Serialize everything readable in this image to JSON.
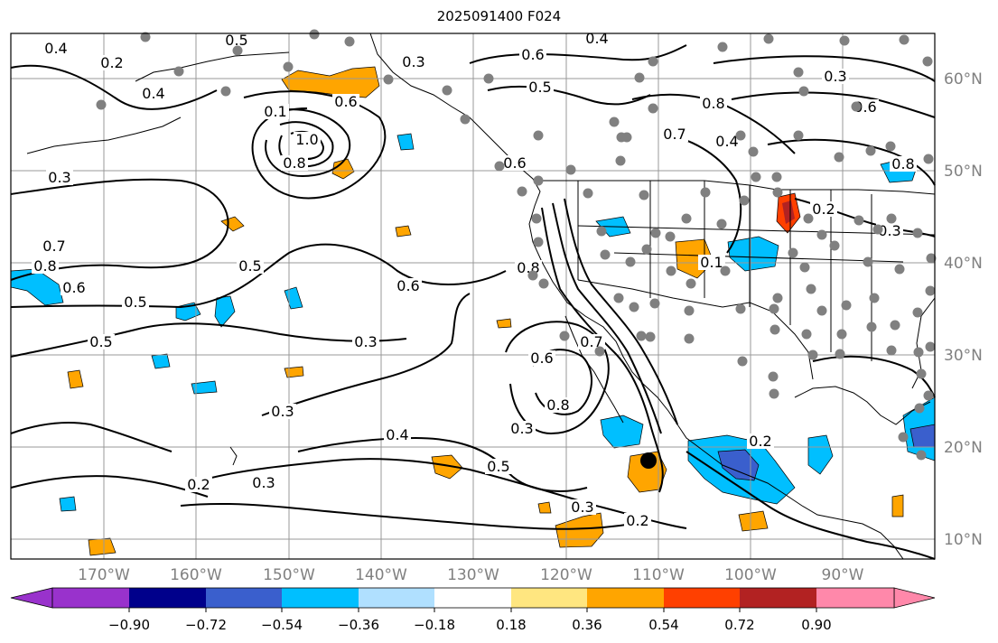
{
  "title": "2025091400 F024",
  "map": {
    "lon_labels": [
      "170°W",
      "160°W",
      "150°W",
      "140°W",
      "130°W",
      "120°W",
      "110°W",
      "100°W",
      "90°W"
    ],
    "lat_labels": [
      "60°N",
      "50°N",
      "40°N",
      "30°N",
      "20°N",
      "10°N"
    ],
    "lon_range": [
      -180,
      -80
    ],
    "lat_range": [
      8,
      65
    ],
    "contour_labels": [
      "0.4",
      "0.5",
      "0.3",
      "0.4",
      "0.2",
      "0.6",
      "0.5",
      "0.4",
      "0.6",
      "0.3",
      "0.6",
      "0.1",
      "1.0",
      "0.8",
      "0.3",
      "0.7",
      "0.8",
      "0.6",
      "0.5",
      "0.5",
      "0.6",
      "0.5",
      "0.3",
      "0.3",
      "0.4",
      "0.5",
      "0.2",
      "0.3",
      "0.3",
      "0.8",
      "0.6",
      "0.7",
      "0.8",
      "0.3",
      "0.2",
      "0.8",
      "0.7",
      "0.4",
      "0.8",
      "0.2",
      "0.2",
      "0.3",
      "0.6",
      "0.1"
    ],
    "colors": {
      "land_outline": "#000000",
      "grid": "#999999",
      "station": "#808080",
      "contour": "#000000"
    }
  },
  "colorbar": {
    "ticks": [
      "−0.90",
      "−0.72",
      "−0.54",
      "−0.36",
      "−0.18",
      "0.18",
      "0.36",
      "0.54",
      "0.72",
      "0.90"
    ],
    "colors": [
      "#9932cc",
      "#00008b",
      "#3a5fcd",
      "#00bfff",
      "#b0e0ff",
      "#ffffff",
      "#ffe680",
      "#ffa500",
      "#ff4000",
      "#b22222",
      "#ff88aa"
    ]
  }
}
